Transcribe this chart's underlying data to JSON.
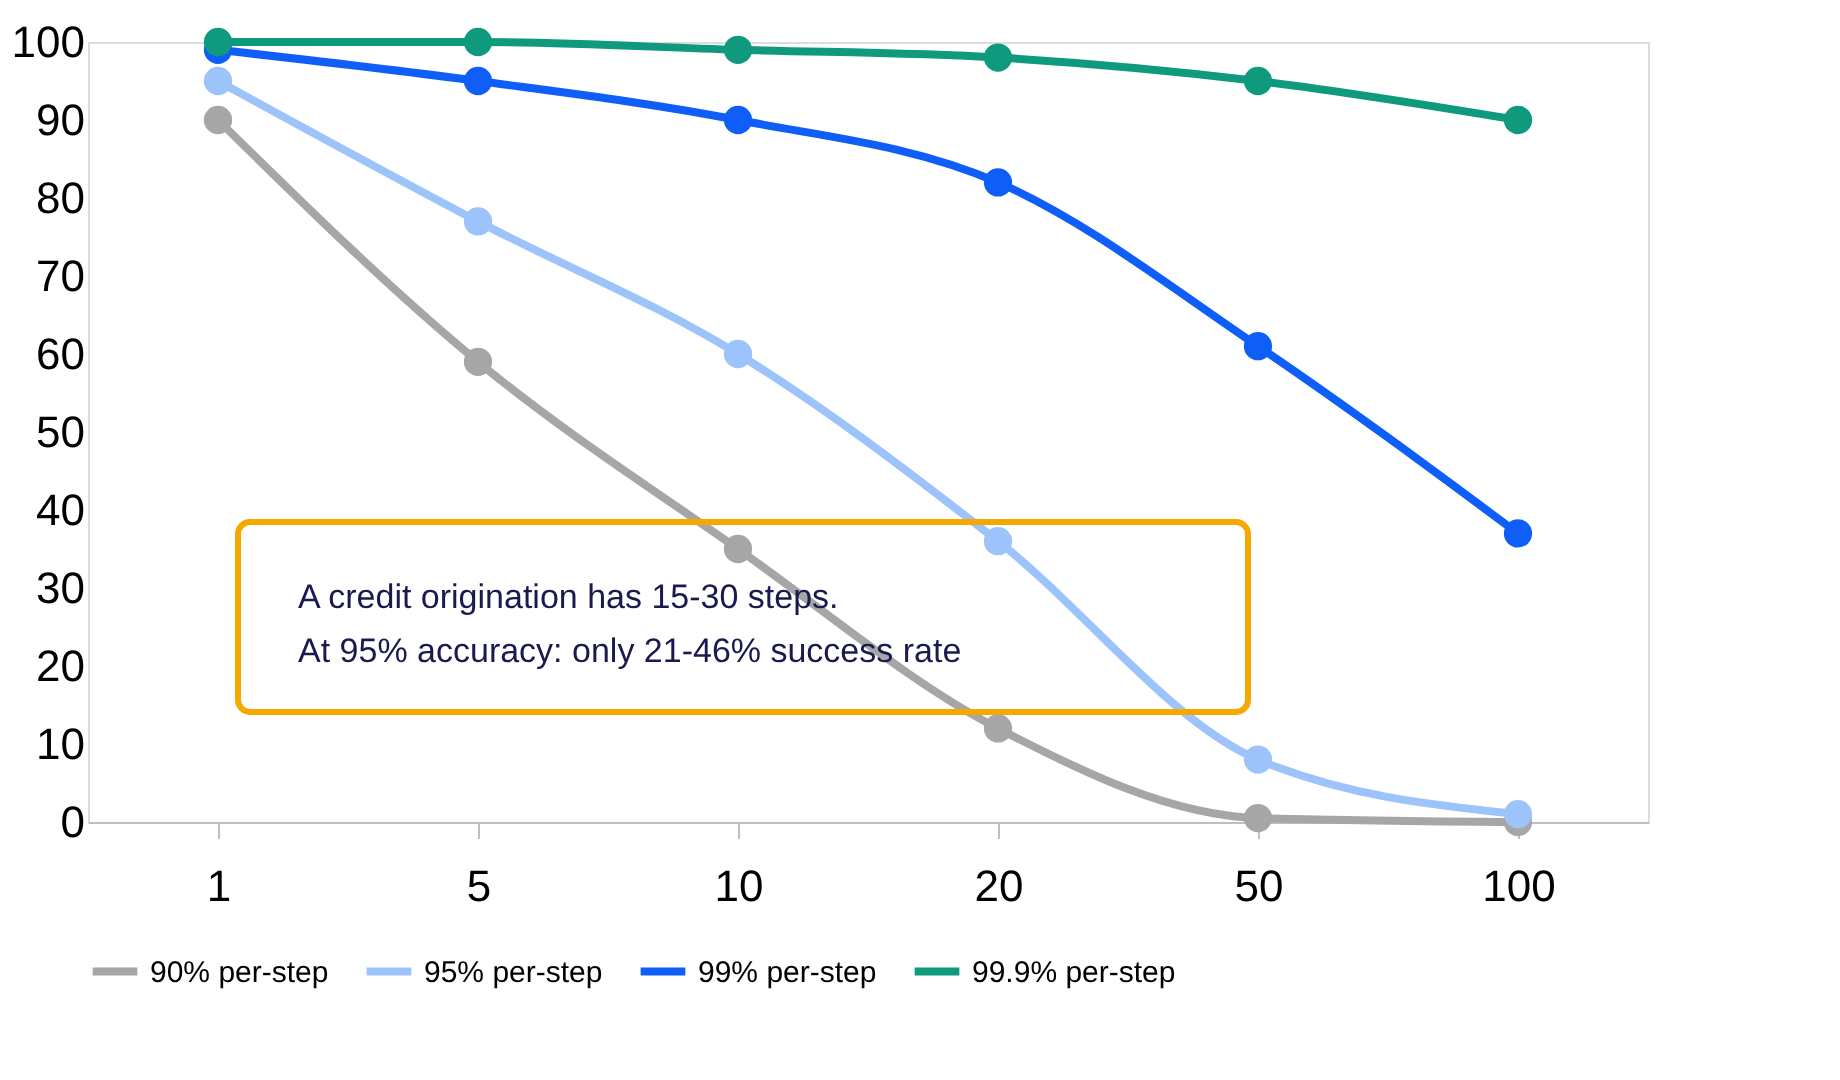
{
  "chart_data": {
    "type": "line",
    "categories": [
      "1",
      "5",
      "10",
      "20",
      "50",
      "100"
    ],
    "series": [
      {
        "name": "90% per-step",
        "color": "#a6a6a6",
        "values": [
          90,
          59,
          35,
          12,
          0.5,
          0
        ]
      },
      {
        "name": "95% per-step",
        "color": "#9dc3fb",
        "values": [
          95,
          77,
          60,
          36,
          8,
          1
        ]
      },
      {
        "name": "99% per-step",
        "color": "#0f5ef7",
        "values": [
          99,
          95,
          90,
          82,
          61,
          37
        ]
      },
      {
        "name": "99.9% per-step",
        "color": "#0f9a7e",
        "values": [
          100,
          100,
          99,
          98,
          95,
          90
        ]
      }
    ],
    "ylim": [
      0,
      100
    ],
    "yticks": [
      0,
      10,
      20,
      30,
      40,
      50,
      60,
      70,
      80,
      90,
      100
    ],
    "grid": false,
    "legend": "bottom",
    "marker": "circle",
    "line_style": "solid",
    "annotations": [
      "A credit origination has 15-30 steps.",
      "At 95% accuracy: only 21-46% success rate"
    ]
  }
}
